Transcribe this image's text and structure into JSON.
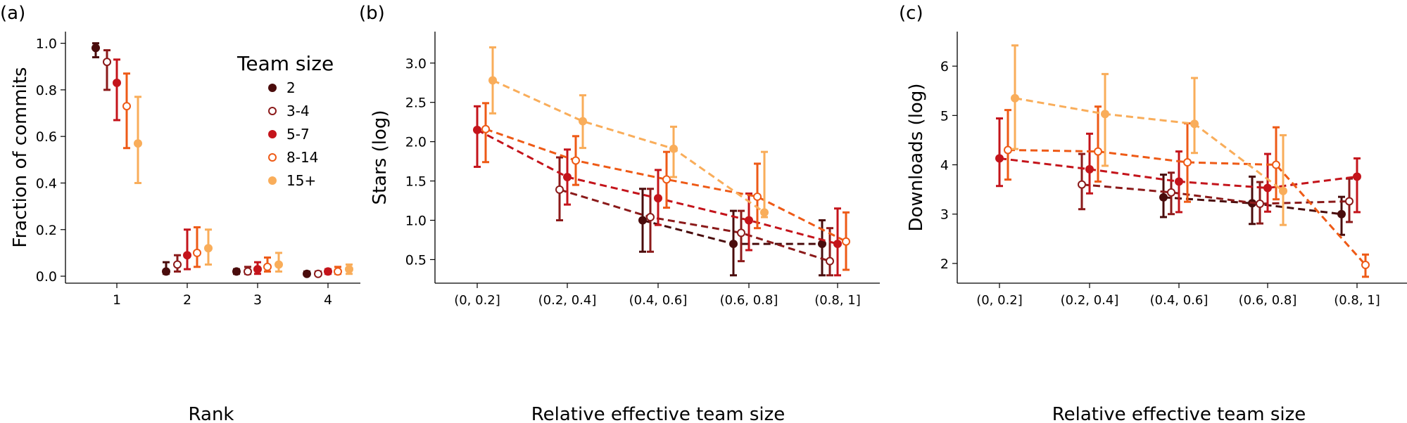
{
  "colors": {
    "2": "#4a0c0c",
    "3-4": "#8b1a1a",
    "5-7": "#c4141b",
    "8-14": "#ee5a16",
    "15+": "#f9ad5a"
  },
  "legend": {
    "title": "Team size",
    "entries": [
      {
        "label": "2",
        "marker": "filled",
        "color_key": "2"
      },
      {
        "label": "3-4",
        "marker": "open",
        "color_key": "3-4"
      },
      {
        "label": "5-7",
        "marker": "filled",
        "color_key": "5-7"
      },
      {
        "label": "8-14",
        "marker": "open",
        "color_key": "8-14"
      },
      {
        "label": "15+",
        "marker": "filled",
        "color_key": "15+"
      }
    ]
  },
  "chart_data": [
    {
      "panel_label": "(a)",
      "type": "scatter",
      "title": "",
      "xlabel": "Rank",
      "ylabel": "Fraction of commits",
      "categories": [
        "1",
        "2",
        "3",
        "4"
      ],
      "ylim": [
        -0.03,
        1.05
      ],
      "yticks": [
        "0.0",
        "0.2",
        "0.4",
        "0.6",
        "0.8",
        "1.0"
      ],
      "grid": false,
      "legend_position": "top-right",
      "series": [
        {
          "color_key": "2",
          "marker": "filled",
          "values": [
            0.98,
            0.02,
            0.02,
            0.01
          ],
          "low": [
            0.94,
            0.01,
            0.01,
            0.01
          ],
          "high": [
            1.0,
            0.06,
            0.03,
            0.02
          ]
        },
        {
          "color_key": "3-4",
          "marker": "open",
          "values": [
            0.92,
            0.05,
            0.02,
            0.01
          ],
          "low": [
            0.8,
            0.02,
            0.01,
            0.01
          ],
          "high": [
            0.97,
            0.09,
            0.04,
            0.02
          ]
        },
        {
          "color_key": "5-7",
          "marker": "filled",
          "values": [
            0.83,
            0.09,
            0.03,
            0.02
          ],
          "low": [
            0.67,
            0.03,
            0.01,
            0.01
          ],
          "high": [
            0.93,
            0.2,
            0.06,
            0.03
          ]
        },
        {
          "color_key": "8-14",
          "marker": "open",
          "values": [
            0.73,
            0.1,
            0.04,
            0.02
          ],
          "low": [
            0.55,
            0.04,
            0.02,
            0.01
          ],
          "high": [
            0.87,
            0.21,
            0.08,
            0.04
          ]
        },
        {
          "color_key": "15+",
          "marker": "filled",
          "values": [
            0.57,
            0.12,
            0.05,
            0.03
          ],
          "low": [
            0.4,
            0.05,
            0.02,
            0.01
          ],
          "high": [
            0.77,
            0.2,
            0.1,
            0.05
          ]
        }
      ]
    },
    {
      "panel_label": "(b)",
      "type": "line",
      "title": "",
      "xlabel": "Relative effective team size",
      "ylabel": "Stars (log)",
      "categories": [
        "(0, 0.2]",
        "(0.2, 0.4]",
        "(0.4, 0.6]",
        "(0.6, 0.8]",
        "(0.8, 1]"
      ],
      "ylim": [
        0.2,
        3.4
      ],
      "yticks": [
        "0.5",
        "1.0",
        "1.5",
        "2.0",
        "2.5",
        "3.0"
      ],
      "grid": false,
      "series": [
        {
          "color_key": "2",
          "marker": "filled",
          "values": [
            null,
            null,
            1.0,
            0.7,
            0.7
          ],
          "low": [
            null,
            null,
            0.6,
            0.3,
            0.3
          ],
          "high": [
            null,
            null,
            1.4,
            1.12,
            1.0
          ]
        },
        {
          "color_key": "3-4",
          "marker": "open",
          "values": [
            null,
            1.39,
            1.04,
            0.84,
            0.48
          ],
          "low": [
            null,
            1.0,
            0.6,
            0.48,
            0.3
          ],
          "high": [
            null,
            1.8,
            1.4,
            1.12,
            0.9
          ]
        },
        {
          "color_key": "5-7",
          "marker": "filled",
          "values": [
            2.15,
            1.55,
            1.28,
            1.0,
            0.7
          ],
          "low": [
            1.68,
            1.2,
            0.94,
            0.62,
            0.3
          ],
          "high": [
            2.45,
            1.9,
            1.64,
            1.34,
            1.15
          ]
        },
        {
          "color_key": "8-14",
          "marker": "open",
          "values": [
            2.16,
            1.76,
            1.52,
            1.3,
            0.73
          ],
          "low": [
            1.74,
            1.45,
            1.16,
            0.9,
            0.37
          ],
          "high": [
            2.49,
            2.07,
            1.87,
            1.72,
            1.1
          ]
        },
        {
          "color_key": "15+",
          "marker": "filled",
          "values": [
            2.78,
            2.26,
            1.91,
            1.1,
            null
          ],
          "low": [
            2.36,
            1.92,
            1.55,
            1.04,
            null
          ],
          "high": [
            3.2,
            2.59,
            2.19,
            1.87,
            null
          ]
        }
      ]
    },
    {
      "panel_label": "(c)",
      "type": "line",
      "title": "",
      "xlabel": "Relative effective team size",
      "ylabel": "Downloads (log)",
      "categories": [
        "(0, 0.2]",
        "(0.2, 0.4]",
        "(0.4, 0.6]",
        "(0.6, 0.8]",
        "(0.8, 1]"
      ],
      "ylim": [
        1.6,
        6.7
      ],
      "yticks": [
        "2",
        "3",
        "4",
        "5",
        "6"
      ],
      "grid": false,
      "series": [
        {
          "color_key": "2",
          "marker": "filled",
          "values": [
            null,
            null,
            3.34,
            3.22,
            3.0
          ],
          "low": [
            null,
            null,
            2.94,
            2.8,
            2.58
          ],
          "high": [
            null,
            null,
            3.8,
            3.76,
            3.35
          ]
        },
        {
          "color_key": "3-4",
          "marker": "open",
          "values": [
            null,
            3.6,
            3.44,
            3.21,
            3.26
          ],
          "low": [
            null,
            3.1,
            3.0,
            2.81,
            2.84
          ],
          "high": [
            null,
            4.22,
            3.84,
            3.65,
            3.72
          ]
        },
        {
          "color_key": "5-7",
          "marker": "filled",
          "values": [
            4.13,
            3.91,
            3.66,
            3.53,
            3.76
          ],
          "low": [
            3.57,
            3.42,
            3.04,
            3.05,
            3.04
          ],
          "high": [
            4.94,
            4.63,
            4.27,
            4.22,
            4.13
          ]
        },
        {
          "color_key": "8-14",
          "marker": "open",
          "values": [
            4.3,
            4.27,
            4.05,
            4.0,
            1.97
          ],
          "low": [
            3.7,
            3.66,
            3.25,
            3.3,
            1.73
          ],
          "high": [
            5.11,
            5.18,
            4.84,
            4.76,
            2.18
          ]
        },
        {
          "color_key": "15+",
          "marker": "filled",
          "values": [
            5.35,
            5.03,
            4.83,
            3.47,
            null
          ],
          "low": [
            4.32,
            3.98,
            4.24,
            2.78,
            null
          ],
          "high": [
            6.42,
            5.84,
            5.76,
            4.6,
            null
          ]
        }
      ]
    }
  ]
}
